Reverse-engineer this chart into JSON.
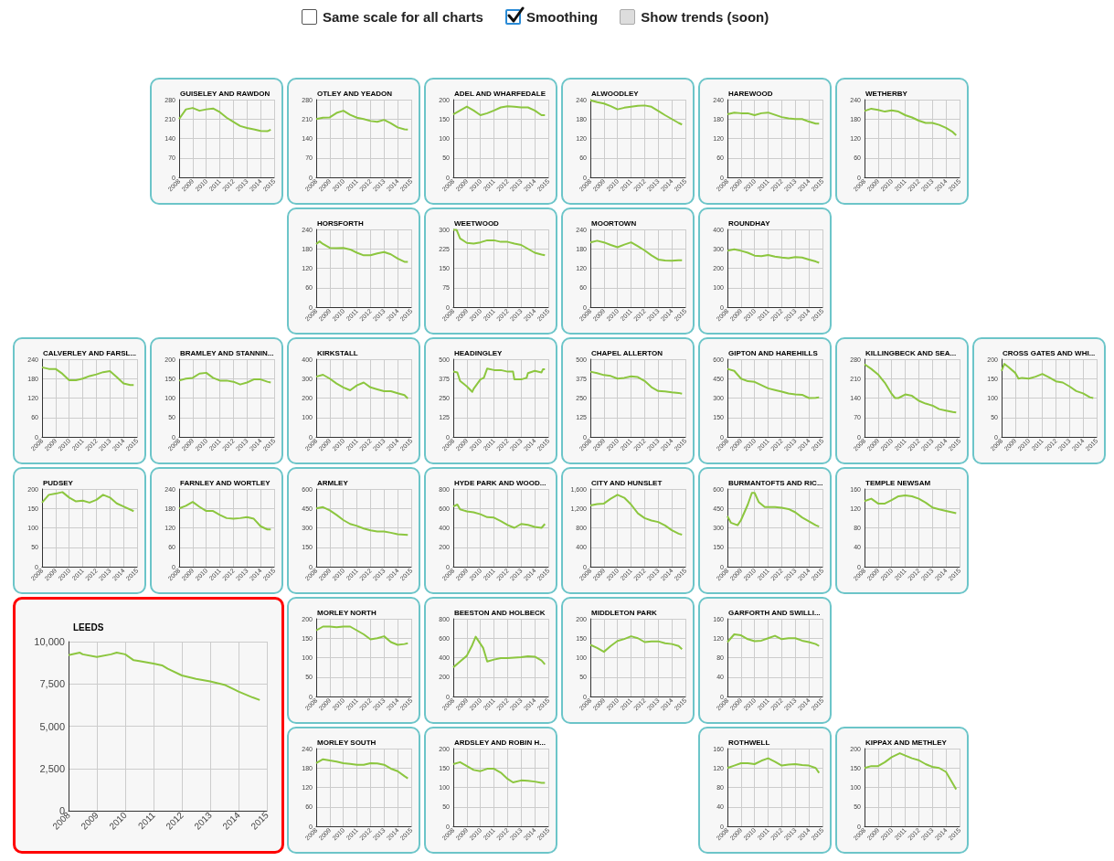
{
  "chart_data": [
    {
      "type": "other",
      "annotations": [
        "Same scale for all charts",
        "Smoothing",
        "Show trends (soon)"
      ]
    },
    {
      "type": "line",
      "title": "GUISELEY AND RAWDON",
      "x": [
        2008,
        2008.5,
        2009,
        2009.5,
        2010,
        2010.5,
        2011,
        2011.5,
        2012,
        2012.5,
        2013,
        2013.5,
        2014,
        2014.5,
        2014.75
      ],
      "values": [
        210,
        245,
        250,
        240,
        245,
        248,
        235,
        215,
        200,
        185,
        178,
        173,
        167,
        166,
        172
      ],
      "color": "#8cc63f",
      "xlim": [
        2008,
        2015
      ],
      "xticks": [
        2008,
        2009,
        2010,
        2011,
        2012,
        2013,
        2014,
        2015
      ],
      "ylim": [
        0,
        280
      ],
      "yticks": [
        0,
        70,
        140,
        210,
        280
      ],
      "grid": true
    },
    {
      "type": "line",
      "title": "OTLEY AND YEADON",
      "x": [
        2008,
        2008.5,
        2009,
        2009.5,
        2010,
        2010.5,
        2011,
        2011.5,
        2012,
        2012.5,
        2013,
        2013.5,
        2014,
        2014.5,
        2014.75
      ],
      "values": [
        210,
        215,
        216,
        232,
        240,
        225,
        215,
        210,
        203,
        200,
        207,
        195,
        180,
        173,
        172
      ],
      "color": "#8cc63f",
      "xlim": [
        2008,
        2015
      ],
      "xticks": [
        2008,
        2009,
        2010,
        2011,
        2012,
        2013,
        2014,
        2015
      ],
      "ylim": [
        0,
        280
      ],
      "yticks": [
        0,
        70,
        140,
        210,
        280
      ],
      "grid": true
    },
    {
      "type": "line",
      "title": "ADEL AND WHARFEDALE",
      "x": [
        2008,
        2008.5,
        2009,
        2009.5,
        2010,
        2010.5,
        2011,
        2011.5,
        2012,
        2012.5,
        2013,
        2013.5,
        2014,
        2014.5,
        2014.75
      ],
      "values": [
        162,
        172,
        182,
        172,
        160,
        165,
        172,
        180,
        183,
        182,
        180,
        180,
        172,
        160,
        160
      ],
      "color": "#8cc63f",
      "xlim": [
        2008,
        2015
      ],
      "xticks": [
        2008,
        2009,
        2010,
        2011,
        2012,
        2013,
        2014,
        2015
      ],
      "ylim": [
        0,
        200
      ],
      "yticks": [
        0,
        50,
        100,
        150,
        200
      ],
      "grid": true
    },
    {
      "type": "line",
      "title": "ALWOODLEY",
      "x": [
        2008,
        2008.5,
        2009,
        2009.5,
        2010,
        2010.5,
        2011,
        2011.5,
        2012,
        2012.5,
        2013,
        2013.5,
        2014,
        2014.5,
        2014.75
      ],
      "values": [
        238,
        232,
        228,
        220,
        210,
        215,
        218,
        221,
        222,
        218,
        205,
        192,
        180,
        168,
        163
      ],
      "color": "#8cc63f",
      "xlim": [
        2008,
        2015
      ],
      "xticks": [
        2008,
        2009,
        2010,
        2011,
        2012,
        2013,
        2014,
        2015
      ],
      "ylim": [
        0,
        240
      ],
      "yticks": [
        0,
        60,
        120,
        180,
        240
      ],
      "grid": true
    },
    {
      "type": "line",
      "title": "HAREWOOD",
      "x": [
        2008,
        2008.5,
        2009,
        2009.5,
        2010,
        2010.5,
        2011,
        2011.5,
        2012,
        2012.5,
        2013,
        2013.5,
        2014,
        2014.5,
        2014.75
      ],
      "values": [
        195,
        200,
        198,
        198,
        192,
        198,
        200,
        193,
        186,
        182,
        180,
        180,
        172,
        166,
        166
      ],
      "color": "#8cc63f",
      "xlim": [
        2008,
        2015
      ],
      "xticks": [
        2008,
        2009,
        2010,
        2011,
        2012,
        2013,
        2014,
        2015
      ],
      "ylim": [
        0,
        240
      ],
      "yticks": [
        0,
        60,
        120,
        180,
        240
      ],
      "grid": true
    },
    {
      "type": "line",
      "title": "WETHERBY",
      "x": [
        2008,
        2008.5,
        2009,
        2009.5,
        2010,
        2010.5,
        2011,
        2011.5,
        2012,
        2012.5,
        2013,
        2013.5,
        2014,
        2014.5,
        2014.75
      ],
      "values": [
        205,
        212,
        208,
        203,
        207,
        203,
        192,
        185,
        175,
        168,
        168,
        162,
        153,
        140,
        130
      ],
      "color": "#8cc63f",
      "xlim": [
        2008,
        2015
      ],
      "xticks": [
        2008,
        2009,
        2010,
        2011,
        2012,
        2013,
        2014,
        2015
      ],
      "ylim": [
        0,
        240
      ],
      "yticks": [
        0,
        60,
        120,
        180,
        240
      ],
      "grid": true
    },
    {
      "type": "line",
      "title": "HORSFORTH",
      "x": [
        2008,
        2008.25,
        2008.5,
        2009,
        2009.5,
        2010,
        2010.5,
        2011,
        2011.5,
        2012,
        2012.5,
        2013,
        2013.5,
        2014,
        2014.5,
        2014.75
      ],
      "values": [
        195,
        203,
        195,
        183,
        182,
        183,
        178,
        168,
        160,
        160,
        166,
        170,
        163,
        150,
        140,
        140
      ],
      "color": "#8cc63f",
      "xlim": [
        2008,
        2015
      ],
      "xticks": [
        2008,
        2009,
        2010,
        2011,
        2012,
        2013,
        2014,
        2015
      ],
      "ylim": [
        0,
        240
      ],
      "yticks": [
        0,
        60,
        120,
        180,
        240
      ],
      "grid": true
    },
    {
      "type": "line",
      "title": "WEETWOOD",
      "x": [
        2008,
        2008.25,
        2008.5,
        2009,
        2009.5,
        2010,
        2010.5,
        2011,
        2011.5,
        2012,
        2012.5,
        2013,
        2013.5,
        2014,
        2014.5,
        2014.75
      ],
      "values": [
        298,
        298,
        265,
        248,
        245,
        250,
        258,
        258,
        252,
        252,
        245,
        240,
        225,
        210,
        203,
        200
      ],
      "color": "#8cc63f",
      "xlim": [
        2008,
        2015
      ],
      "xticks": [
        2008,
        2009,
        2010,
        2011,
        2012,
        2013,
        2014,
        2015
      ],
      "ylim": [
        0,
        300
      ],
      "yticks": [
        0,
        75,
        150,
        225,
        300
      ],
      "grid": true
    },
    {
      "type": "line",
      "title": "MOORTOWN",
      "x": [
        2008,
        2008.5,
        2009,
        2009.5,
        2010,
        2010.5,
        2011,
        2011.5,
        2012,
        2012.5,
        2013,
        2013.5,
        2014,
        2014.5,
        2014.75
      ],
      "values": [
        200,
        205,
        200,
        192,
        185,
        193,
        200,
        188,
        175,
        160,
        147,
        144,
        143,
        145,
        145
      ],
      "color": "#8cc63f",
      "xlim": [
        2008,
        2015
      ],
      "xticks": [
        2008,
        2009,
        2010,
        2011,
        2012,
        2013,
        2014,
        2015
      ],
      "ylim": [
        0,
        240
      ],
      "yticks": [
        0,
        60,
        120,
        180,
        240
      ],
      "grid": true
    },
    {
      "type": "line",
      "title": "ROUNDHAY",
      "x": [
        2008,
        2008.5,
        2009,
        2009.5,
        2010,
        2010.5,
        2011,
        2011.5,
        2012,
        2012.5,
        2013,
        2013.5,
        2014,
        2014.5,
        2014.75
      ],
      "values": [
        290,
        298,
        290,
        280,
        265,
        262,
        268,
        260,
        255,
        252,
        258,
        255,
        245,
        235,
        228
      ],
      "color": "#8cc63f",
      "xlim": [
        2008,
        2015
      ],
      "xticks": [
        2008,
        2009,
        2010,
        2011,
        2012,
        2013,
        2014,
        2015
      ],
      "ylim": [
        0,
        400
      ],
      "yticks": [
        0,
        100,
        200,
        300,
        400
      ],
      "grid": true
    },
    {
      "type": "line",
      "title": "CALVERLEY AND FARSL...",
      "x": [
        2008,
        2008.5,
        2009,
        2009.5,
        2010,
        2010.5,
        2011,
        2011.5,
        2012,
        2012.5,
        2013,
        2013.5,
        2014,
        2014.5,
        2014.75
      ],
      "values": [
        215,
        210,
        210,
        195,
        175,
        175,
        180,
        188,
        193,
        200,
        203,
        185,
        165,
        160,
        160
      ],
      "color": "#8cc63f",
      "xlim": [
        2008,
        2015
      ],
      "xticks": [
        2008,
        2009,
        2010,
        2011,
        2012,
        2013,
        2014,
        2015
      ],
      "ylim": [
        0,
        240
      ],
      "yticks": [
        0,
        60,
        120,
        180,
        240
      ],
      "grid": true
    },
    {
      "type": "line",
      "title": "BRAMLEY AND STANNIN...",
      "x": [
        2008,
        2008.5,
        2009,
        2009.5,
        2010,
        2010.5,
        2011,
        2011.5,
        2012,
        2012.5,
        2013,
        2013.5,
        2014,
        2014.5,
        2014.75
      ],
      "values": [
        145,
        150,
        152,
        163,
        165,
        152,
        145,
        145,
        142,
        135,
        140,
        148,
        148,
        142,
        140
      ],
      "color": "#8cc63f",
      "xlim": [
        2008,
        2015
      ],
      "xticks": [
        2008,
        2009,
        2010,
        2011,
        2012,
        2013,
        2014,
        2015
      ],
      "ylim": [
        0,
        200
      ],
      "yticks": [
        0,
        50,
        100,
        150,
        200
      ],
      "grid": true
    },
    {
      "type": "line",
      "title": "KIRKSTALL",
      "x": [
        2008,
        2008.5,
        2009,
        2009.5,
        2010,
        2010.5,
        2011,
        2011.5,
        2012,
        2012.5,
        2013,
        2013.5,
        2014,
        2014.5,
        2014.75
      ],
      "values": [
        310,
        320,
        300,
        275,
        255,
        240,
        265,
        280,
        255,
        245,
        235,
        235,
        225,
        215,
        198
      ],
      "color": "#8cc63f",
      "xlim": [
        2008,
        2015
      ],
      "xticks": [
        2008,
        2009,
        2010,
        2011,
        2012,
        2013,
        2014,
        2015
      ],
      "ylim": [
        0,
        400
      ],
      "yticks": [
        0,
        100,
        200,
        300,
        400
      ],
      "grid": true
    },
    {
      "type": "line",
      "title": "HEADINGLEY",
      "x": [
        2008,
        2008.3,
        2008.5,
        2009,
        2009.4,
        2009.5,
        2010,
        2010.25,
        2010.5,
        2011,
        2011.5,
        2012,
        2012.4,
        2012.5,
        2013,
        2013.4,
        2013.5,
        2014,
        2014.5,
        2014.6,
        2014.75
      ],
      "values": [
        420,
        415,
        360,
        325,
        290,
        310,
        370,
        380,
        440,
        430,
        430,
        420,
        420,
        370,
        370,
        380,
        410,
        425,
        415,
        435,
        435
      ],
      "color": "#8cc63f",
      "xlim": [
        2008,
        2015
      ],
      "xticks": [
        2008,
        2009,
        2010,
        2011,
        2012,
        2013,
        2014,
        2015
      ],
      "ylim": [
        0,
        500
      ],
      "yticks": [
        0,
        125,
        250,
        375,
        500
      ],
      "grid": true
    },
    {
      "type": "line",
      "title": "CHAPEL ALLERTON",
      "x": [
        2008,
        2008.5,
        2009,
        2009.5,
        2010,
        2010.5,
        2011,
        2011.5,
        2012,
        2012.5,
        2013,
        2013.5,
        2014,
        2014.5,
        2014.75
      ],
      "values": [
        420,
        410,
        398,
        392,
        375,
        380,
        390,
        385,
        360,
        320,
        295,
        292,
        287,
        283,
        278
      ],
      "color": "#8cc63f",
      "xlim": [
        2008,
        2015
      ],
      "xticks": [
        2008,
        2009,
        2010,
        2011,
        2012,
        2013,
        2014,
        2015
      ],
      "ylim": [
        0,
        500
      ],
      "yticks": [
        0,
        125,
        250,
        375,
        500
      ],
      "grid": true
    },
    {
      "type": "line",
      "title": "GIPTON AND HAREHILLS",
      "x": [
        2008,
        2008.5,
        2009,
        2009.5,
        2010,
        2010.5,
        2011,
        2011.5,
        2012,
        2012.5,
        2013,
        2013.5,
        2014,
        2014.5,
        2014.75
      ],
      "values": [
        525,
        510,
        450,
        430,
        425,
        400,
        375,
        362,
        350,
        335,
        328,
        325,
        300,
        302,
        305
      ],
      "color": "#8cc63f",
      "xlim": [
        2008,
        2015
      ],
      "xticks": [
        2008,
        2009,
        2010,
        2011,
        2012,
        2013,
        2014,
        2015
      ],
      "ylim": [
        0,
        600
      ],
      "yticks": [
        0,
        150,
        300,
        450,
        600
      ],
      "grid": true
    },
    {
      "type": "line",
      "title": "KILLINGBECK AND SEA...",
      "x": [
        2008,
        2008.5,
        2009,
        2009.5,
        2010,
        2010.25,
        2010.5,
        2011,
        2011.5,
        2012,
        2012.5,
        2013,
        2013.5,
        2014,
        2014.5,
        2014.75
      ],
      "values": [
        262,
        245,
        225,
        195,
        155,
        140,
        140,
        153,
        148,
        130,
        120,
        113,
        100,
        95,
        90,
        88
      ],
      "color": "#8cc63f",
      "xlim": [
        2008,
        2015
      ],
      "xticks": [
        2008,
        2009,
        2010,
        2011,
        2012,
        2013,
        2014,
        2015
      ],
      "ylim": [
        0,
        280
      ],
      "yticks": [
        0,
        70,
        140,
        210,
        280
      ],
      "grid": true
    },
    {
      "type": "line",
      "title": "CROSS GATES AND WHI...",
      "x": [
        2008,
        2008.2,
        2008.5,
        2009,
        2009.25,
        2009.5,
        2010,
        2010.5,
        2011,
        2011.5,
        2012,
        2012.5,
        2013,
        2013.5,
        2014,
        2014.5,
        2014.75
      ],
      "values": [
        170,
        188,
        180,
        165,
        150,
        152,
        150,
        155,
        162,
        153,
        143,
        140,
        130,
        118,
        112,
        102,
        100
      ],
      "color": "#8cc63f",
      "xlim": [
        2008,
        2015
      ],
      "xticks": [
        2008,
        2009,
        2010,
        2011,
        2012,
        2013,
        2014,
        2015
      ],
      "ylim": [
        0,
        200
      ],
      "yticks": [
        0,
        50,
        100,
        150,
        200
      ],
      "grid": true
    },
    {
      "type": "line",
      "title": "PUDSEY",
      "x": [
        2008,
        2008.5,
        2009,
        2009.5,
        2010,
        2010.5,
        2011,
        2011.5,
        2012,
        2012.5,
        2013,
        2013.5,
        2014,
        2014.75
      ],
      "values": [
        165,
        185,
        188,
        192,
        178,
        168,
        170,
        165,
        172,
        185,
        178,
        163,
        155,
        143
      ],
      "color": "#8cc63f",
      "xlim": [
        2008,
        2015
      ],
      "xticks": [
        2008,
        2009,
        2010,
        2011,
        2012,
        2013,
        2014,
        2015
      ],
      "ylim": [
        0,
        200
      ],
      "yticks": [
        0,
        50,
        100,
        150,
        200
      ],
      "grid": true
    },
    {
      "type": "line",
      "title": "FARNLEY AND WORTLEY",
      "x": [
        2008,
        2008.5,
        2009,
        2009.5,
        2010,
        2010.5,
        2011,
        2011.5,
        2012,
        2012.5,
        2013,
        2013.5,
        2014,
        2014.5,
        2014.75
      ],
      "values": [
        180,
        188,
        200,
        185,
        172,
        172,
        160,
        150,
        148,
        150,
        153,
        148,
        125,
        115,
        115
      ],
      "color": "#8cc63f",
      "xlim": [
        2008,
        2015
      ],
      "xticks": [
        2008,
        2009,
        2010,
        2011,
        2012,
        2013,
        2014,
        2015
      ],
      "ylim": [
        0,
        240
      ],
      "yticks": [
        0,
        60,
        120,
        180,
        240
      ],
      "grid": true
    },
    {
      "type": "line",
      "title": "ARMLEY",
      "x": [
        2008,
        2008.5,
        2009,
        2009.5,
        2010,
        2010.5,
        2011,
        2011.5,
        2012,
        2012.5,
        2013,
        2013.5,
        2014,
        2014.75
      ],
      "values": [
        450,
        460,
        435,
        400,
        360,
        330,
        315,
        295,
        280,
        272,
        272,
        262,
        250,
        245
      ],
      "color": "#8cc63f",
      "xlim": [
        2008,
        2015
      ],
      "xticks": [
        2008,
        2009,
        2010,
        2011,
        2012,
        2013,
        2014,
        2015
      ],
      "ylim": [
        0,
        600
      ],
      "yticks": [
        0,
        150,
        300,
        450,
        600
      ],
      "grid": true
    },
    {
      "type": "line",
      "title": "HYDE PARK AND WOOD...",
      "x": [
        2008,
        2008.3,
        2008.5,
        2009,
        2009.5,
        2010,
        2010.5,
        2011,
        2011.5,
        2012,
        2012.5,
        2013,
        2013.5,
        2014,
        2014.5,
        2014.75
      ],
      "values": [
        620,
        640,
        590,
        570,
        560,
        540,
        510,
        505,
        470,
        430,
        400,
        440,
        430,
        410,
        400,
        440
      ],
      "color": "#8cc63f",
      "xlim": [
        2008,
        2015
      ],
      "xticks": [
        2008,
        2009,
        2010,
        2011,
        2012,
        2013,
        2014,
        2015
      ],
      "ylim": [
        0,
        800
      ],
      "yticks": [
        0,
        200,
        400,
        600,
        800
      ],
      "grid": true
    },
    {
      "type": "line",
      "title": "CITY AND HUNSLET",
      "x": [
        2008,
        2008.5,
        2009,
        2009.5,
        2010,
        2010.5,
        2011,
        2011.5,
        2012,
        2012.5,
        2013,
        2013.5,
        2014,
        2014.5,
        2014.75
      ],
      "values": [
        1260,
        1290,
        1300,
        1400,
        1480,
        1420,
        1280,
        1100,
        1000,
        950,
        920,
        850,
        750,
        680,
        660
      ],
      "color": "#8cc63f",
      "xlim": [
        2008,
        2015
      ],
      "xticks": [
        2008,
        2009,
        2010,
        2011,
        2012,
        2013,
        2014,
        2015
      ],
      "ylim": [
        0,
        1600
      ],
      "yticks": [
        0,
        400,
        800,
        {
          "value": 1200,
          "label": "1,200"
        },
        {
          "value": 1600,
          "label": "1,600"
        }
      ],
      "grid": true
    },
    {
      "type": "line",
      "title": "BURMANTOFTS AND RIC...",
      "x": [
        2008,
        2008.25,
        2008.75,
        2009,
        2009.5,
        2009.8,
        2010,
        2010.3,
        2010.75,
        2011.5,
        2012,
        2012.5,
        2013,
        2013.5,
        2014,
        2014.5,
        2014.75
      ],
      "values": [
        390,
        340,
        320,
        360,
        480,
        570,
        570,
        500,
        460,
        460,
        455,
        445,
        420,
        380,
        350,
        320,
        310
      ],
      "color": "#8cc63f",
      "xlim": [
        2008,
        2015
      ],
      "xticks": [
        2008,
        2009,
        2010,
        2011,
        2012,
        2013,
        2014,
        2015
      ],
      "ylim": [
        0,
        600
      ],
      "yticks": [
        0,
        150,
        300,
        450,
        600
      ],
      "grid": true
    },
    {
      "type": "line",
      "title": "TEMPLE NEWSAM",
      "x": [
        2008,
        2008.5,
        2009,
        2009.5,
        2010,
        2010.5,
        2011,
        2011.5,
        2012,
        2012.5,
        2013,
        2013.5,
        2014,
        2014.75
      ],
      "values": [
        135,
        140,
        130,
        130,
        137,
        145,
        147,
        145,
        140,
        132,
        122,
        118,
        115,
        110
      ],
      "color": "#8cc63f",
      "xlim": [
        2008,
        2015
      ],
      "xticks": [
        2008,
        2009,
        2010,
        2011,
        2012,
        2013,
        2014,
        2015
      ],
      "ylim": [
        0,
        160
      ],
      "yticks": [
        0,
        40,
        80,
        120,
        160
      ],
      "grid": true
    },
    {
      "type": "line",
      "title": "LEEDS",
      "x": [
        2008,
        2008.4,
        2008.5,
        2009,
        2009.5,
        2009.7,
        2010,
        2010.3,
        2010.5,
        2011,
        2011.3,
        2011.5,
        2012,
        2012.5,
        2013,
        2013.5,
        2014,
        2014.5,
        2014.75
      ],
      "values": [
        9200,
        9350,
        9250,
        9100,
        9250,
        9350,
        9250,
        8900,
        8850,
        8700,
        8600,
        8400,
        8000,
        7800,
        7650,
        7450,
        7050,
        6700,
        6550
      ],
      "color": "#8cc63f",
      "xlim": [
        2008,
        2015
      ],
      "xticks": [
        2008,
        2009,
        2010,
        2011,
        2012,
        2013,
        2014,
        2015
      ],
      "ylim": [
        0,
        10000
      ],
      "yticks": [
        0,
        {
          "value": 2500,
          "label": "2,500"
        },
        {
          "value": 5000,
          "label": "5,000"
        },
        {
          "value": 7500,
          "label": "7,500"
        },
        {
          "value": 10000,
          "label": "10,000"
        }
      ],
      "grid": true
    },
    {
      "type": "line",
      "title": "MORLEY NORTH",
      "x": [
        2008,
        2008.5,
        2009,
        2009.5,
        2010,
        2010.5,
        2011,
        2011.5,
        2012,
        2012.5,
        2013,
        2013.5,
        2014,
        2014.5,
        2014.75
      ],
      "values": [
        170,
        180,
        180,
        178,
        180,
        180,
        170,
        160,
        147,
        150,
        155,
        140,
        133,
        135,
        137
      ],
      "color": "#8cc63f",
      "xlim": [
        2008,
        2015
      ],
      "xticks": [
        2008,
        2009,
        2010,
        2011,
        2012,
        2013,
        2014,
        2015
      ],
      "ylim": [
        0,
        200
      ],
      "yticks": [
        0,
        50,
        100,
        150,
        200
      ],
      "grid": true
    },
    {
      "type": "line",
      "title": "BEESTON AND HOLBECK",
      "x": [
        2008,
        2008.5,
        2009,
        2009.4,
        2009.65,
        2010.2,
        2010.5,
        2011,
        2011.5,
        2012,
        2012.5,
        2013,
        2013.5,
        2014,
        2014.5,
        2014.75
      ],
      "values": [
        300,
        360,
        420,
        530,
        615,
        500,
        360,
        380,
        395,
        395,
        400,
        405,
        415,
        410,
        370,
        330
      ],
      "color": "#8cc63f",
      "xlim": [
        2008,
        2015
      ],
      "xticks": [
        2008,
        2009,
        2010,
        2011,
        2012,
        2013,
        2014,
        2015
      ],
      "ylim": [
        0,
        800
      ],
      "yticks": [
        0,
        200,
        400,
        600,
        800
      ],
      "grid": true
    },
    {
      "type": "line",
      "title": "MIDDLETON PARK",
      "x": [
        2008,
        2008.5,
        2009,
        2009.5,
        2010,
        2010.5,
        2011,
        2011.5,
        2012,
        2012.5,
        2013,
        2013.5,
        2014,
        2014.5,
        2014.75
      ],
      "values": [
        133,
        125,
        115,
        130,
        143,
        148,
        155,
        150,
        140,
        142,
        142,
        137,
        135,
        130,
        122
      ],
      "color": "#8cc63f",
      "xlim": [
        2008,
        2015
      ],
      "xticks": [
        2008,
        2009,
        2010,
        2011,
        2012,
        2013,
        2014,
        2015
      ],
      "ylim": [
        0,
        200
      ],
      "yticks": [
        0,
        50,
        100,
        150,
        200
      ],
      "grid": true
    },
    {
      "type": "line",
      "title": "GARFORTH AND SWILLI...",
      "x": [
        2008,
        2008.5,
        2009,
        2009.5,
        2010,
        2010.5,
        2011,
        2011.5,
        2012,
        2012.5,
        2013,
        2013.5,
        2014,
        2014.5,
        2014.75
      ],
      "values": [
        112,
        128,
        126,
        118,
        114,
        115,
        120,
        125,
        118,
        120,
        120,
        115,
        112,
        108,
        104
      ],
      "color": "#8cc63f",
      "xlim": [
        2008,
        2015
      ],
      "xticks": [
        2008,
        2009,
        2010,
        2011,
        2012,
        2013,
        2014,
        2015
      ],
      "ylim": [
        0,
        160
      ],
      "yticks": [
        0,
        40,
        80,
        120,
        160
      ],
      "grid": true
    },
    {
      "type": "line",
      "title": "MORLEY SOUTH",
      "x": [
        2008,
        2008.5,
        2009,
        2009.5,
        2010,
        2010.5,
        2011,
        2011.5,
        2012,
        2012.5,
        2013,
        2013.5,
        2014,
        2014.5,
        2014.75
      ],
      "values": [
        195,
        207,
        203,
        200,
        195,
        193,
        190,
        190,
        195,
        194,
        190,
        178,
        170,
        155,
        148
      ],
      "color": "#8cc63f",
      "xlim": [
        2008,
        2015
      ],
      "xticks": [
        2008,
        2009,
        2010,
        2011,
        2012,
        2013,
        2014,
        2015
      ],
      "ylim": [
        0,
        240
      ],
      "yticks": [
        0,
        60,
        120,
        180,
        240
      ],
      "grid": true
    },
    {
      "type": "line",
      "title": "ARDSLEY AND ROBIN H...",
      "x": [
        2008,
        2008.5,
        2009,
        2009.5,
        2010,
        2010.5,
        2011,
        2011.5,
        2012,
        2012.4,
        2013,
        2013.5,
        2014,
        2014.5,
        2014.75
      ],
      "values": [
        160,
        165,
        155,
        145,
        142,
        148,
        148,
        138,
        122,
        113,
        118,
        117,
        115,
        112,
        112
      ],
      "color": "#8cc63f",
      "xlim": [
        2008,
        2015
      ],
      "xticks": [
        2008,
        2009,
        2010,
        2011,
        2012,
        2013,
        2014,
        2015
      ],
      "ylim": [
        0,
        200
      ],
      "yticks": [
        0,
        50,
        100,
        150,
        200
      ],
      "grid": true
    },
    {
      "type": "line",
      "title": "ROTHWELL",
      "x": [
        2008,
        2008.5,
        2009,
        2009.5,
        2010,
        2010.5,
        2011,
        2011.5,
        2012,
        2012.5,
        2013,
        2013.5,
        2014,
        2014.5,
        2014.75
      ],
      "values": [
        120,
        125,
        130,
        130,
        128,
        135,
        140,
        133,
        125,
        127,
        128,
        126,
        125,
        120,
        110
      ],
      "color": "#8cc63f",
      "xlim": [
        2008,
        2015
      ],
      "xticks": [
        2008,
        2009,
        2010,
        2011,
        2012,
        2013,
        2014,
        2015
      ],
      "ylim": [
        0,
        160
      ],
      "yticks": [
        0,
        40,
        80,
        120,
        160
      ],
      "grid": true
    },
    {
      "type": "line",
      "title": "KIPPAX AND METHLEY",
      "x": [
        2008,
        2008.5,
        2009,
        2009.5,
        2010,
        2010.6,
        2011,
        2011.5,
        2012,
        2012.5,
        2013,
        2013.5,
        2014,
        2014.5,
        2014.75
      ],
      "values": [
        150,
        155,
        155,
        165,
        178,
        188,
        182,
        175,
        170,
        160,
        153,
        150,
        140,
        110,
        95
      ],
      "color": "#8cc63f",
      "xlim": [
        2008,
        2015
      ],
      "xticks": [
        2008,
        2009,
        2010,
        2011,
        2012,
        2013,
        2014,
        2015
      ],
      "ylim": [
        0,
        200
      ],
      "yticks": [
        0,
        50,
        100,
        150,
        200
      ],
      "grid": true
    }
  ]
}
